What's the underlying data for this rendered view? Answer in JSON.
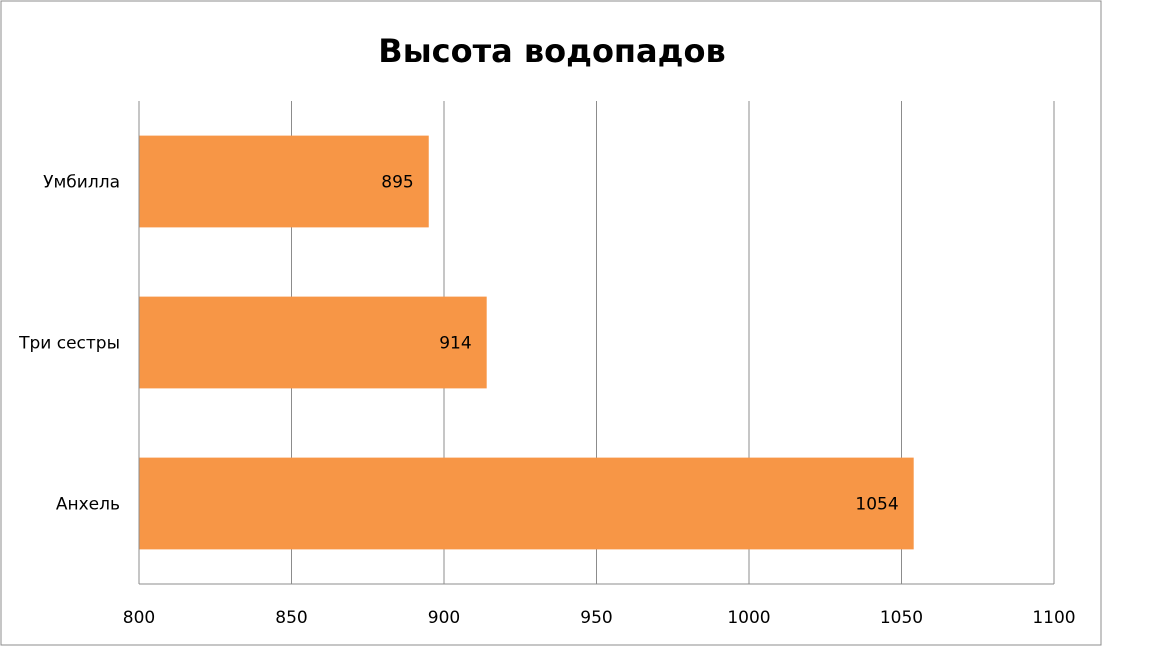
{
  "chart_data": {
    "type": "bar",
    "orientation": "horizontal",
    "title": "Высота водопадов",
    "categories": [
      "Умбилла",
      "Три сестры",
      "Анхель"
    ],
    "values": [
      895,
      914,
      1054
    ],
    "data_labels": [
      "895",
      "914",
      "1054"
    ],
    "xlim": [
      800,
      1100
    ],
    "x_ticks": [
      "800",
      "850",
      "900",
      "950",
      "1000",
      "1050",
      "1100"
    ],
    "xlabel": "",
    "ylabel": "",
    "grid": true,
    "legend": "none",
    "bar_color": "#F79646"
  }
}
